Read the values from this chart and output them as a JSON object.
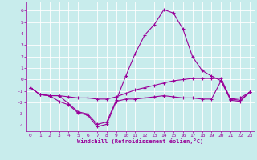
{
  "xlabel": "Windchill (Refroidissement éolien,°C)",
  "background_color": "#c8ecec",
  "grid_color": "#ffffff",
  "line_color": "#990099",
  "xlim": [
    -0.5,
    23.5
  ],
  "ylim": [
    -4.5,
    6.8
  ],
  "xticks": [
    0,
    1,
    2,
    3,
    4,
    5,
    6,
    7,
    8,
    9,
    10,
    11,
    12,
    13,
    14,
    15,
    16,
    17,
    18,
    19,
    20,
    21,
    22,
    23
  ],
  "yticks": [
    -4,
    -3,
    -2,
    -1,
    0,
    1,
    2,
    3,
    4,
    5,
    6
  ],
  "line1_x": [
    0,
    1,
    2,
    3,
    4,
    5,
    6,
    7,
    8,
    9,
    10,
    11,
    12,
    13,
    14,
    15,
    16,
    17,
    18,
    19,
    20,
    21,
    22,
    23
  ],
  "line1_y": [
    -0.7,
    -1.3,
    -1.4,
    -1.4,
    -1.5,
    -1.6,
    -1.6,
    -1.7,
    -1.7,
    -1.5,
    -1.2,
    -0.9,
    -0.7,
    -0.5,
    -0.3,
    -0.1,
    0.0,
    0.1,
    0.1,
    0.1,
    0.1,
    -1.7,
    -1.6,
    -1.1
  ],
  "line2_x": [
    0,
    1,
    2,
    3,
    4,
    5,
    6,
    7,
    8,
    9,
    10,
    11,
    12,
    13,
    14,
    15,
    16,
    17,
    18,
    19,
    20,
    21,
    22,
    23
  ],
  "line2_y": [
    -0.7,
    -1.3,
    -1.4,
    -1.4,
    -2.1,
    -2.8,
    -3.0,
    -3.9,
    -3.7,
    -1.8,
    0.3,
    2.3,
    3.9,
    4.8,
    6.1,
    5.8,
    4.4,
    2.0,
    0.8,
    0.3,
    -0.1,
    -1.7,
    -1.8,
    -1.1
  ],
  "line3_x": [
    0,
    1,
    2,
    3,
    4,
    5,
    6,
    7,
    8,
    9,
    10,
    11,
    12,
    13,
    14,
    15,
    16,
    17,
    18,
    19,
    20,
    21,
    22,
    23
  ],
  "line3_y": [
    -0.7,
    -1.3,
    -1.4,
    -1.9,
    -2.2,
    -2.9,
    -3.1,
    -4.1,
    -3.9,
    -1.9,
    -1.7,
    -1.7,
    -1.6,
    -1.5,
    -1.4,
    -1.5,
    -1.6,
    -1.6,
    -1.7,
    -1.7,
    -0.1,
    -1.8,
    -1.9,
    -1.1
  ]
}
